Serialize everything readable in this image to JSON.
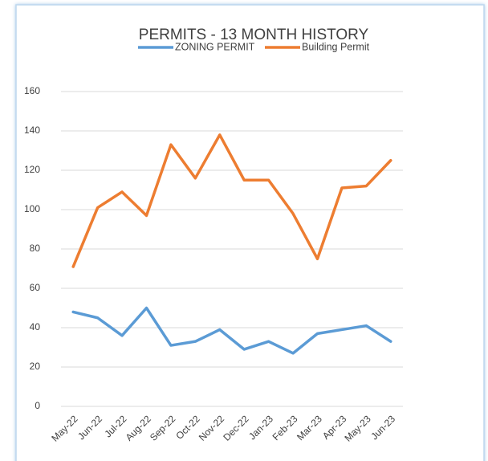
{
  "chart_data": {
    "type": "line",
    "title": "PERMITS - 13 MONTH HISTORY",
    "categories": [
      "May-22",
      "Jun-22",
      "Jul-22",
      "Aug-22",
      "Sep-22",
      "Oct-22",
      "Nov-22",
      "Dec-22",
      "Jan-23",
      "Feb-23",
      "Mar-23",
      "Apr-23",
      "May-23",
      "Jun-23"
    ],
    "series": [
      {
        "name": "ZONING PERMIT",
        "color": "#5b9bd5",
        "values": [
          48,
          45,
          36,
          50,
          31,
          33,
          39,
          29,
          33,
          27,
          37,
          39,
          41,
          33
        ]
      },
      {
        "name": "Building Permit",
        "color": "#ed7d31",
        "values": [
          71,
          101,
          109,
          97,
          133,
          116,
          138,
          115,
          115,
          98,
          75,
          111,
          112,
          125
        ]
      }
    ],
    "ylim": [
      0,
      160
    ],
    "yticks": [
      0,
      20,
      40,
      60,
      80,
      100,
      120,
      140,
      160
    ],
    "grid": true,
    "legend": "top"
  }
}
